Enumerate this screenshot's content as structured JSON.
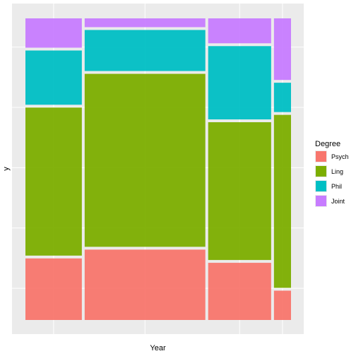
{
  "chart_data": {
    "type": "mosaic",
    "xlabel": "Year",
    "ylabel": "y",
    "legend": {
      "title": "Degree",
      "placement": "right",
      "entries": [
        "Psych",
        "Ling",
        "Phil",
        "Joint"
      ]
    },
    "colors": {
      "Psych": "#F8766D",
      "Ling": "#7CAE00",
      "Phil": "#00BFC4",
      "Joint": "#C77CFF"
    },
    "columns": [
      {
        "width_share": 0.215,
        "segments": [
          {
            "degree": "Psych",
            "share": 0.21
          },
          {
            "degree": "Ling",
            "share": 0.505
          },
          {
            "degree": "Phil",
            "share": 0.185
          },
          {
            "degree": "Joint",
            "share": 0.1
          }
        ]
      },
      {
        "width_share": 0.46,
        "segments": [
          {
            "degree": "Psych",
            "share": 0.24
          },
          {
            "degree": "Ling",
            "share": 0.59
          },
          {
            "degree": "Phil",
            "share": 0.14
          },
          {
            "degree": "Joint",
            "share": 0.03
          }
        ]
      },
      {
        "width_share": 0.24,
        "segments": [
          {
            "degree": "Psych",
            "share": 0.195
          },
          {
            "degree": "Ling",
            "share": 0.47
          },
          {
            "degree": "Phil",
            "share": 0.25
          },
          {
            "degree": "Joint",
            "share": 0.085
          }
        ]
      },
      {
        "width_share": 0.065,
        "segments": [
          {
            "degree": "Psych",
            "share": 0.1
          },
          {
            "degree": "Ling",
            "share": 0.59
          },
          {
            "degree": "Phil",
            "share": 0.1
          },
          {
            "degree": "Joint",
            "share": 0.21
          }
        ]
      }
    ],
    "grid": true,
    "theme_colors": {
      "panel_background": "#EBEBEB",
      "grid_major": "#FFFFFF",
      "tile_outline": "#EBEBEB"
    }
  }
}
